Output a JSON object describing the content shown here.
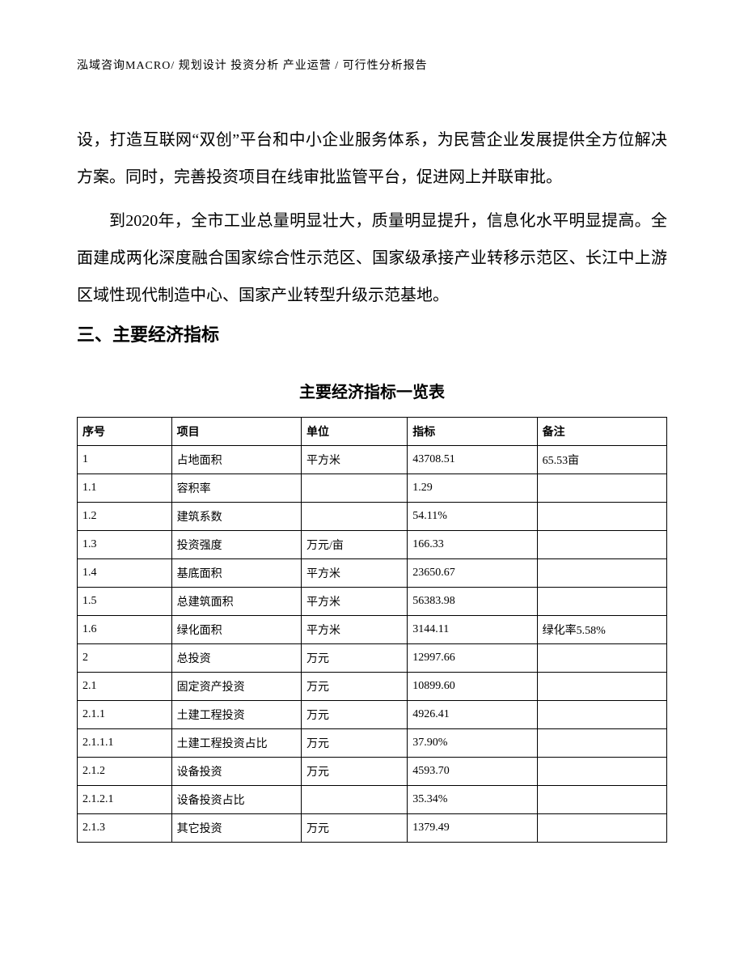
{
  "header": "泓域咨询MACRO/ 规划设计  投资分析  产业运营 / 可行性分析报告",
  "paragraphs": {
    "p1": "设，打造互联网“双创”平台和中小企业服务体系，为民营企业发展提供全方位解决方案。同时，完善投资项目在线审批监管平台，促进网上并联审批。",
    "p2": "到2020年，全市工业总量明显壮大，质量明显提升，信息化水平明显提高。全面建成两化深度融合国家综合性示范区、国家级承接产业转移示范区、长江中上游区域性现代制造中心、国家产业转型升级示范基地。"
  },
  "section_heading": "三、主要经济指标",
  "table": {
    "title": "主要经济指标一览表",
    "columns": [
      "序号",
      "项目",
      "单位",
      "指标",
      "备注"
    ],
    "rows": [
      [
        "1",
        "占地面积",
        "平方米",
        "43708.51",
        "65.53亩"
      ],
      [
        "1.1",
        "容积率",
        "",
        "1.29",
        ""
      ],
      [
        "1.2",
        "建筑系数",
        "",
        "54.11%",
        ""
      ],
      [
        "1.3",
        "投资强度",
        "万元/亩",
        "166.33",
        ""
      ],
      [
        "1.4",
        "基底面积",
        "平方米",
        "23650.67",
        ""
      ],
      [
        "1.5",
        "总建筑面积",
        "平方米",
        "56383.98",
        ""
      ],
      [
        "1.6",
        "绿化面积",
        "平方米",
        "3144.11",
        "绿化率5.58%"
      ],
      [
        "2",
        "总投资",
        "万元",
        "12997.66",
        ""
      ],
      [
        "2.1",
        "固定资产投资",
        "万元",
        "10899.60",
        ""
      ],
      [
        "2.1.1",
        "土建工程投资",
        "万元",
        "4926.41",
        ""
      ],
      [
        "2.1.1.1",
        "土建工程投资占比",
        "万元",
        "37.90%",
        ""
      ],
      [
        "2.1.2",
        "设备投资",
        "万元",
        "4593.70",
        ""
      ],
      [
        "2.1.2.1",
        "设备投资占比",
        "",
        "35.34%",
        ""
      ],
      [
        "2.1.3",
        "其它投资",
        "万元",
        "1379.49",
        ""
      ]
    ]
  }
}
